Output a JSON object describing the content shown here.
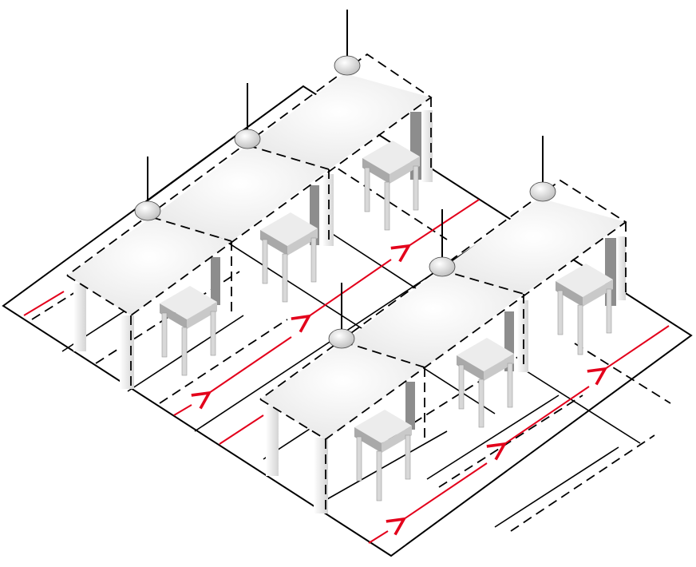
{
  "diagram": {
    "kind": "isometric-workstation-layout",
    "colors": {
      "circulation": "#e3001b",
      "outline": "#000000",
      "furniture": "#eeeeee"
    },
    "rows": [
      {
        "name": "back-row",
        "tables": 3,
        "stools": 3,
        "lamps": 3
      },
      {
        "name": "front-row",
        "tables": 3,
        "stools": 3,
        "lamps": 3
      }
    ],
    "circulation_arrows": 6
  }
}
